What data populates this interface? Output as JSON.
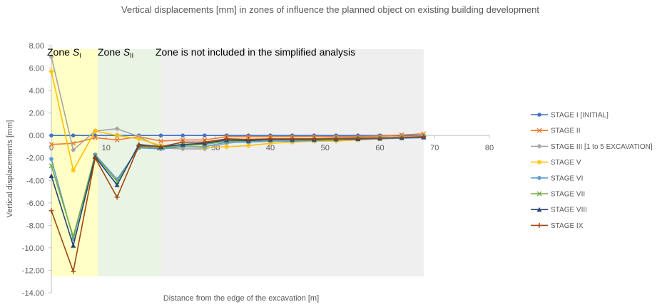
{
  "chart_data": {
    "type": "line",
    "title": "Vertical displacements [mm] in zones of influence the planned object on existing building development",
    "xlabel": "Distance from the edge of the excavation [m]",
    "ylabel": "Vertical displacements [mm]",
    "xlim": [
      0,
      80
    ],
    "ylim": [
      -14,
      8
    ],
    "x_ticks": [
      "0",
      "10",
      "20",
      "30",
      "40",
      "50",
      "60",
      "70",
      "80"
    ],
    "y_ticks": [
      "8.00",
      "6.00",
      "4.00",
      "2.00",
      "0.00",
      "-2.00",
      "-4.00",
      "-6.00",
      "-8.00",
      "-10.00",
      "-12.00",
      "-14.00"
    ],
    "zones": [
      {
        "label": "Zone",
        "sub": "I",
        "x_from": 0,
        "x_to": 8.5,
        "color": "#ffffc6"
      },
      {
        "label": "Zone",
        "sub": "II",
        "x_from": 8.5,
        "x_to": 20,
        "color": "#eaf4e4"
      },
      {
        "label": "Zone is not included in the simplified analysis",
        "sub": "",
        "x_from": 20,
        "x_to": 68,
        "color": "#efefef"
      }
    ],
    "x": [
      0,
      4,
      8,
      12,
      16,
      20,
      24,
      28,
      32,
      36,
      40,
      44,
      48,
      52,
      56,
      60,
      64,
      68
    ],
    "series": [
      {
        "name": "STAGE I [INITIAL]",
        "color": "#4472c4",
        "marker": "circle",
        "values": [
          0,
          0,
          0,
          0,
          0,
          0,
          0,
          0,
          0,
          0,
          0,
          0,
          0,
          0,
          0,
          0,
          0,
          0
        ]
      },
      {
        "name": "STAGE II",
        "color": "#ed7d31",
        "marker": "x",
        "values": [
          -0.8,
          -0.7,
          -0.2,
          -0.4,
          -0.1,
          -0.5,
          -0.4,
          -0.4,
          -0.1,
          -0.1,
          -0.1,
          -0.1,
          -0.1,
          -0.1,
          -0.1,
          -0.05,
          0.05,
          0.15
        ]
      },
      {
        "name": "STAGE III [1 to 5 EXCAVATION]",
        "color": "#a5a5a5",
        "marker": "diamond",
        "values": [
          7.0,
          -1.3,
          0.4,
          0.6,
          -0.1,
          -1.1,
          -1.2,
          -1.2,
          -0.7,
          -0.5,
          -0.4,
          -0.3,
          -0.3,
          -0.2,
          -0.2,
          -0.15,
          -0.1,
          -0.05
        ]
      },
      {
        "name": "STAGE V",
        "color": "#ffc000",
        "marker": "star",
        "values": [
          5.7,
          -3.1,
          0.4,
          0,
          -0.3,
          -0.9,
          -1.0,
          -1.1,
          -1.0,
          -0.9,
          -0.7,
          -0.6,
          -0.5,
          -0.5,
          -0.4,
          -0.3,
          -0.2,
          -0.1
        ]
      },
      {
        "name": "STAGE VI",
        "color": "#5b9bd5",
        "marker": "circle",
        "values": [
          -2.1,
          -9.2,
          -1.7,
          -3.9,
          -1.1,
          -1.2,
          -1.0,
          -1.0,
          -0.6,
          -0.6,
          -0.5,
          -0.5,
          -0.45,
          -0.4,
          -0.35,
          -0.3,
          -0.25,
          -0.2
        ]
      },
      {
        "name": "STAGE VII",
        "color": "#70ad47",
        "marker": "x",
        "values": [
          -2.7,
          -9.0,
          -1.8,
          -4.1,
          -1.0,
          -1.1,
          -0.9,
          -0.8,
          -0.5,
          -0.5,
          -0.4,
          -0.4,
          -0.4,
          -0.35,
          -0.3,
          -0.25,
          -0.2,
          -0.15
        ]
      },
      {
        "name": "STAGE VIII",
        "color": "#264478",
        "marker": "triangle",
        "values": [
          -3.6,
          -9.8,
          -1.9,
          -4.4,
          -0.8,
          -1.0,
          -0.8,
          -0.7,
          -0.4,
          -0.45,
          -0.35,
          -0.35,
          -0.35,
          -0.3,
          -0.3,
          -0.25,
          -0.2,
          -0.15
        ]
      },
      {
        "name": "STAGE IX",
        "color": "#9e480e",
        "marker": "plus",
        "values": [
          -6.7,
          -12.1,
          -2.0,
          -5.5,
          -0.9,
          -1.0,
          -0.6,
          -0.6,
          -0.3,
          -0.35,
          -0.3,
          -0.3,
          -0.3,
          -0.3,
          -0.25,
          -0.25,
          -0.2,
          -0.1
        ]
      }
    ],
    "grid": false,
    "legend_position": "right"
  }
}
